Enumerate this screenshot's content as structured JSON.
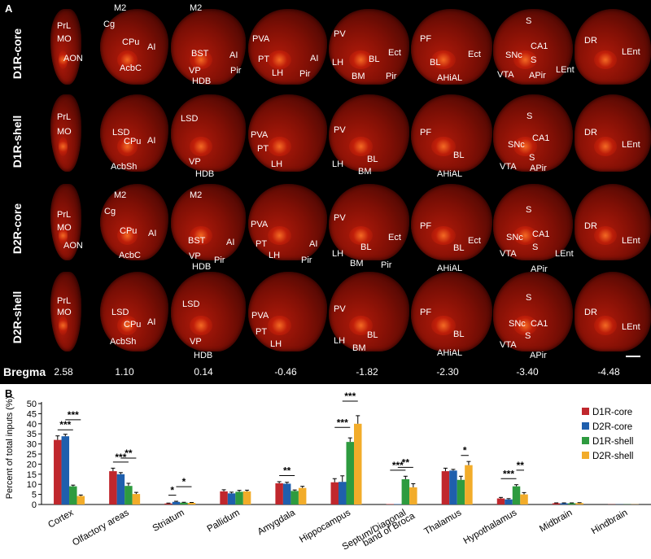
{
  "panel_a": {
    "letter": "A",
    "row_labels": [
      "D1R-core",
      "D1R-shell",
      "D2R-core",
      "D2R-shell"
    ],
    "bregma_label": "Bregma",
    "bregma_values": [
      "2.58",
      "1.10",
      "0.14",
      "-0.46",
      "-1.82",
      "-2.30",
      "-3.40",
      "-4.48"
    ],
    "row0": [
      "PrL",
      "MO",
      "AON",
      "M2",
      "Cg",
      "CPu",
      "AI",
      "AcbC",
      "M2",
      "BST",
      "AI",
      "VP",
      "HDB",
      "Pir",
      "PVA",
      "PT",
      "AI",
      "LH",
      "Pir",
      "PV",
      "Ect",
      "BL",
      "LH",
      "BM",
      "Pir",
      "PF",
      "Ect",
      "BL",
      "AHiAL",
      "S",
      "CA1",
      "SNc",
      "S",
      "VTA",
      "APir",
      "LEnt",
      "DR",
      "LEnt"
    ],
    "row1": [
      "PrL",
      "MO",
      "LSD",
      "CPu",
      "AI",
      "AcbSh",
      "LSD",
      "VP",
      "HDB",
      "PVA",
      "PT",
      "LH",
      "PV",
      "BL",
      "LH",
      "BM",
      "PF",
      "BL",
      "AHiAL",
      "S",
      "CA1",
      "SNc",
      "S",
      "VTA",
      "APir",
      "DR",
      "LEnt"
    ],
    "row2": [
      "PrL",
      "MO",
      "AON",
      "M2",
      "Cg",
      "CPu",
      "AI",
      "AcbC",
      "M2",
      "BST",
      "AI",
      "VP",
      "HDB",
      "Pir",
      "PVA",
      "PT",
      "AI",
      "LH",
      "Pir",
      "PV",
      "Ect",
      "BL",
      "LH",
      "BM",
      "Pir",
      "PF",
      "BL",
      "Ect",
      "AHiAL",
      "S",
      "SNc",
      "CA1",
      "S",
      "VTA",
      "LEnt",
      "APir",
      "DR",
      "LEnt"
    ],
    "row3": [
      "PrL",
      "MO",
      "LSD",
      "CPu",
      "AI",
      "AcbSh",
      "LSD",
      "VP",
      "HDB",
      "PVA",
      "PT",
      "LH",
      "PV",
      "BL",
      "LH",
      "BM",
      "PF",
      "BL",
      "AHiAL",
      "S",
      "SNc",
      "CA1",
      "S",
      "VTA",
      "APir",
      "DR",
      "LEnt"
    ]
  },
  "panel_b": {
    "letter": "B"
  },
  "chart_data": {
    "type": "bar",
    "ylabel": "Percent of total inputs (%)",
    "ylim": [
      0,
      50
    ],
    "yticks": [
      "0",
      "5",
      "10",
      "15",
      "20",
      "25",
      "30",
      "35",
      "40",
      "45",
      "50"
    ],
    "categories": [
      "Cortex",
      "Olfactory areas",
      "Striatum",
      "Pallidum",
      "Amygdala",
      "Hippocampus",
      "Septum/Diagonal band of Broca",
      "Thalamus",
      "Hypothalamus",
      "Midbrain",
      "Hindbrain"
    ],
    "category_labels": [
      [
        "Cortex"
      ],
      [
        "Olfactory areas"
      ],
      [
        "Striatum"
      ],
      [
        "Pallidum"
      ],
      [
        "Amygdala"
      ],
      [
        "Hippocampus"
      ],
      [
        "Septum/Diagonal",
        "band of Broca"
      ],
      [
        "Thalamus"
      ],
      [
        "Hypothalamus"
      ],
      [
        "Midbrain"
      ],
      [
        "Hindbrain"
      ]
    ],
    "series": [
      {
        "name": "D1R-core",
        "color": "#c0272d",
        "values": [
          32,
          16.5,
          0.5,
          6.5,
          10.5,
          11.0,
          0.2,
          16.5,
          3.0,
          0.6,
          0.1
        ],
        "errors": [
          2.0,
          1.5,
          0.2,
          0.8,
          0.8,
          1.8,
          0.1,
          1.5,
          0.5,
          0.2,
          0.05
        ]
      },
      {
        "name": "D2R-core",
        "color": "#1f5fad",
        "values": [
          33.8,
          15.0,
          1.3,
          5.5,
          10.3,
          11.2,
          0.2,
          16.8,
          2.5,
          0.6,
          0.1
        ],
        "errors": [
          1.0,
          0.8,
          0.3,
          0.6,
          0.7,
          3.0,
          0.1,
          0.6,
          0.4,
          0.2,
          0.05
        ]
      },
      {
        "name": "D1R-shell",
        "color": "#2e9b3f",
        "values": [
          9.0,
          9.2,
          0.9,
          6.3,
          6.7,
          31.0,
          12.5,
          12.2,
          9.0,
          0.6,
          0.1
        ],
        "errors": [
          0.6,
          1.3,
          0.2,
          0.7,
          0.5,
          2.0,
          1.5,
          1.8,
          0.8,
          0.2,
          0.05
        ]
      },
      {
        "name": "D2R-shell",
        "color": "#f2ac2a",
        "values": [
          4.2,
          5.2,
          0.8,
          6.5,
          8.2,
          40.0,
          8.5,
          19.5,
          5.0,
          0.7,
          0.1
        ],
        "errors": [
          0.5,
          0.8,
          0.2,
          0.6,
          0.8,
          4.0,
          1.8,
          1.8,
          0.9,
          0.2,
          0.05
        ]
      }
    ],
    "significance": [
      {
        "cat": 0,
        "from": 0,
        "to": 2,
        "label": "***"
      },
      {
        "cat": 0,
        "from": 1,
        "to": 3,
        "label": "***"
      },
      {
        "cat": 1,
        "from": 0,
        "to": 2,
        "label": "***"
      },
      {
        "cat": 1,
        "from": 1,
        "to": 3,
        "label": "**"
      },
      {
        "cat": 2,
        "from": 0,
        "to": 1,
        "label": "*"
      },
      {
        "cat": 2,
        "from": 1,
        "to": 3,
        "label": "*"
      },
      {
        "cat": 4,
        "from": 0,
        "to": 2,
        "label": "**"
      },
      {
        "cat": 5,
        "from": 0,
        "to": 2,
        "label": "***"
      },
      {
        "cat": 5,
        "from": 1,
        "to": 3,
        "label": "***"
      },
      {
        "cat": 6,
        "from": 0,
        "to": 2,
        "label": "***"
      },
      {
        "cat": 6,
        "from": 1,
        "to": 3,
        "label": "**"
      },
      {
        "cat": 7,
        "from": 2,
        "to": 3,
        "label": "*"
      },
      {
        "cat": 8,
        "from": 0,
        "to": 2,
        "label": "***"
      },
      {
        "cat": 8,
        "from": 2,
        "to": 3,
        "label": "**"
      }
    ]
  }
}
